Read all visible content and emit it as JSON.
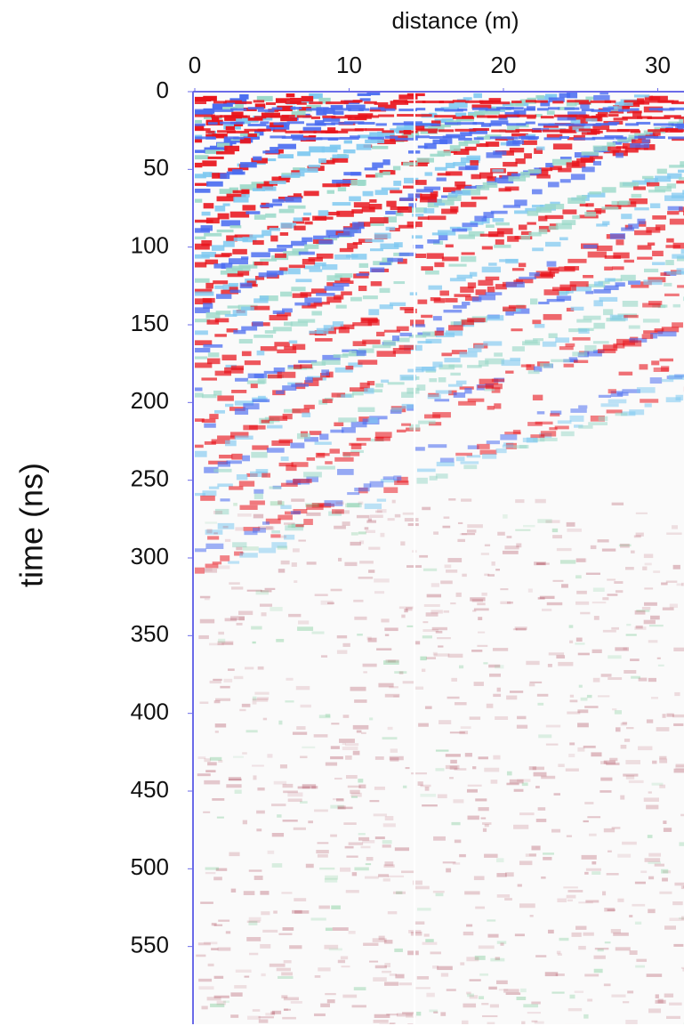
{
  "chart_data": {
    "type": "radargram",
    "title": "distance (m)",
    "ylabel": "time (ns)",
    "xlim": [
      0,
      31.7
    ],
    "xticks": [
      0,
      10,
      20,
      30
    ],
    "ylim": [
      0,
      600
    ],
    "yticks": [
      0,
      50,
      100,
      150,
      200,
      250,
      300,
      350,
      400,
      450,
      500,
      550
    ]
  }
}
